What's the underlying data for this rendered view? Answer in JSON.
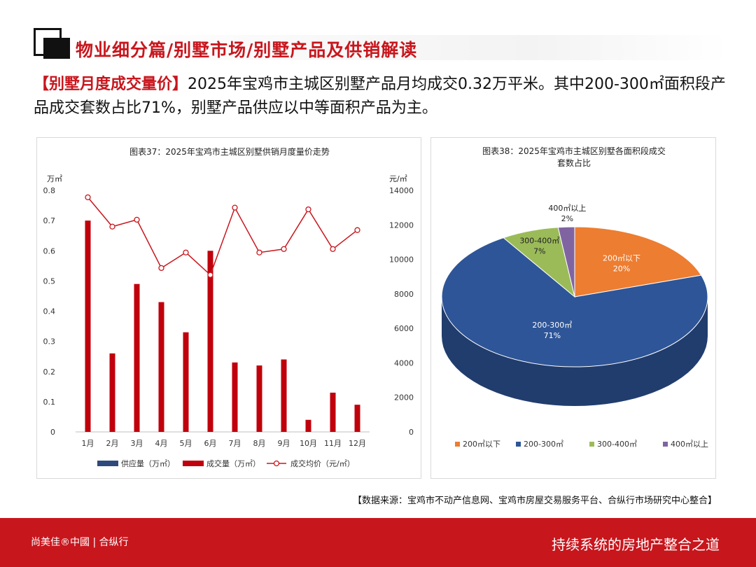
{
  "header": {
    "title": "物业细分篇/别墅市场/别墅产品及供销解读"
  },
  "summary": {
    "tag": "【别墅月度成交量价】",
    "text": "2025年宝鸡市主城区别墅产品月均成交0.32万平米。其中200-300㎡面积段产品成交套数占比71%，别墅产品供应以中等面积产品为主。"
  },
  "chart_data": [
    {
      "type": "bar",
      "title": "图表37：2025年宝鸡市主城区别墅供销月度量价走势",
      "categories": [
        "1月",
        "2月",
        "3月",
        "4月",
        "5月",
        "6月",
        "7月",
        "8月",
        "9月",
        "10月",
        "11月",
        "12月"
      ],
      "y_left_unit": "万㎡",
      "y_left_ticks": [
        "0",
        "0.1",
        "0.2",
        "0.3",
        "0.4",
        "0.5",
        "0.6",
        "0.7",
        "0.8"
      ],
      "ylim_left": [
        0,
        0.8
      ],
      "y_right_unit": "元/㎡",
      "y_right_ticks": [
        "0",
        "2000",
        "4000",
        "6000",
        "8000",
        "10000",
        "12000",
        "14000"
      ],
      "ylim_right": [
        0,
        14000
      ],
      "series": [
        {
          "name": "供应量（万㎡）",
          "type": "bar",
          "color": "#2e4a7d",
          "values": [
            0,
            0,
            0,
            0,
            0,
            0,
            0,
            0,
            0,
            0,
            0,
            0
          ]
        },
        {
          "name": "成交量（万㎡）",
          "type": "bar",
          "color": "#c0000c",
          "values": [
            0.7,
            0.26,
            0.49,
            0.43,
            0.33,
            0.6,
            0.23,
            0.22,
            0.24,
            0.04,
            0.13,
            0.09
          ]
        },
        {
          "name": "成交均价（元/㎡）",
          "type": "line",
          "color": "#c8161d",
          "values": [
            13600,
            11900,
            12300,
            9500,
            10400,
            9100,
            13000,
            10400,
            10600,
            12900,
            10600,
            11700
          ]
        }
      ],
      "legend_position": "bottom"
    },
    {
      "type": "pie",
      "title": "图表38：2025年宝鸡市主城区别墅各面积段成交套数占比",
      "slices": [
        {
          "label": "200㎡以下",
          "percent_label": "20%",
          "value": 20,
          "color": "#ed7d31"
        },
        {
          "label": "200-300㎡",
          "percent_label": "71%",
          "value": 71,
          "color": "#2e5597"
        },
        {
          "label": "300-400㎡",
          "percent_label": "7%",
          "value": 7,
          "color": "#9bbb59"
        },
        {
          "label": "400㎡以上",
          "percent_label": "2%",
          "value": 2,
          "color": "#8064a2"
        }
      ],
      "legend_position": "bottom"
    }
  ],
  "source": {
    "text": "【数据来源：宝鸡市不动产信息网、宝鸡市房屋交易服务平台、合纵行市场研究中心整合】"
  },
  "footer": {
    "logo": "尚美佳®中國 | 合纵行",
    "slogan": "持续系统的房地产整合之道"
  }
}
